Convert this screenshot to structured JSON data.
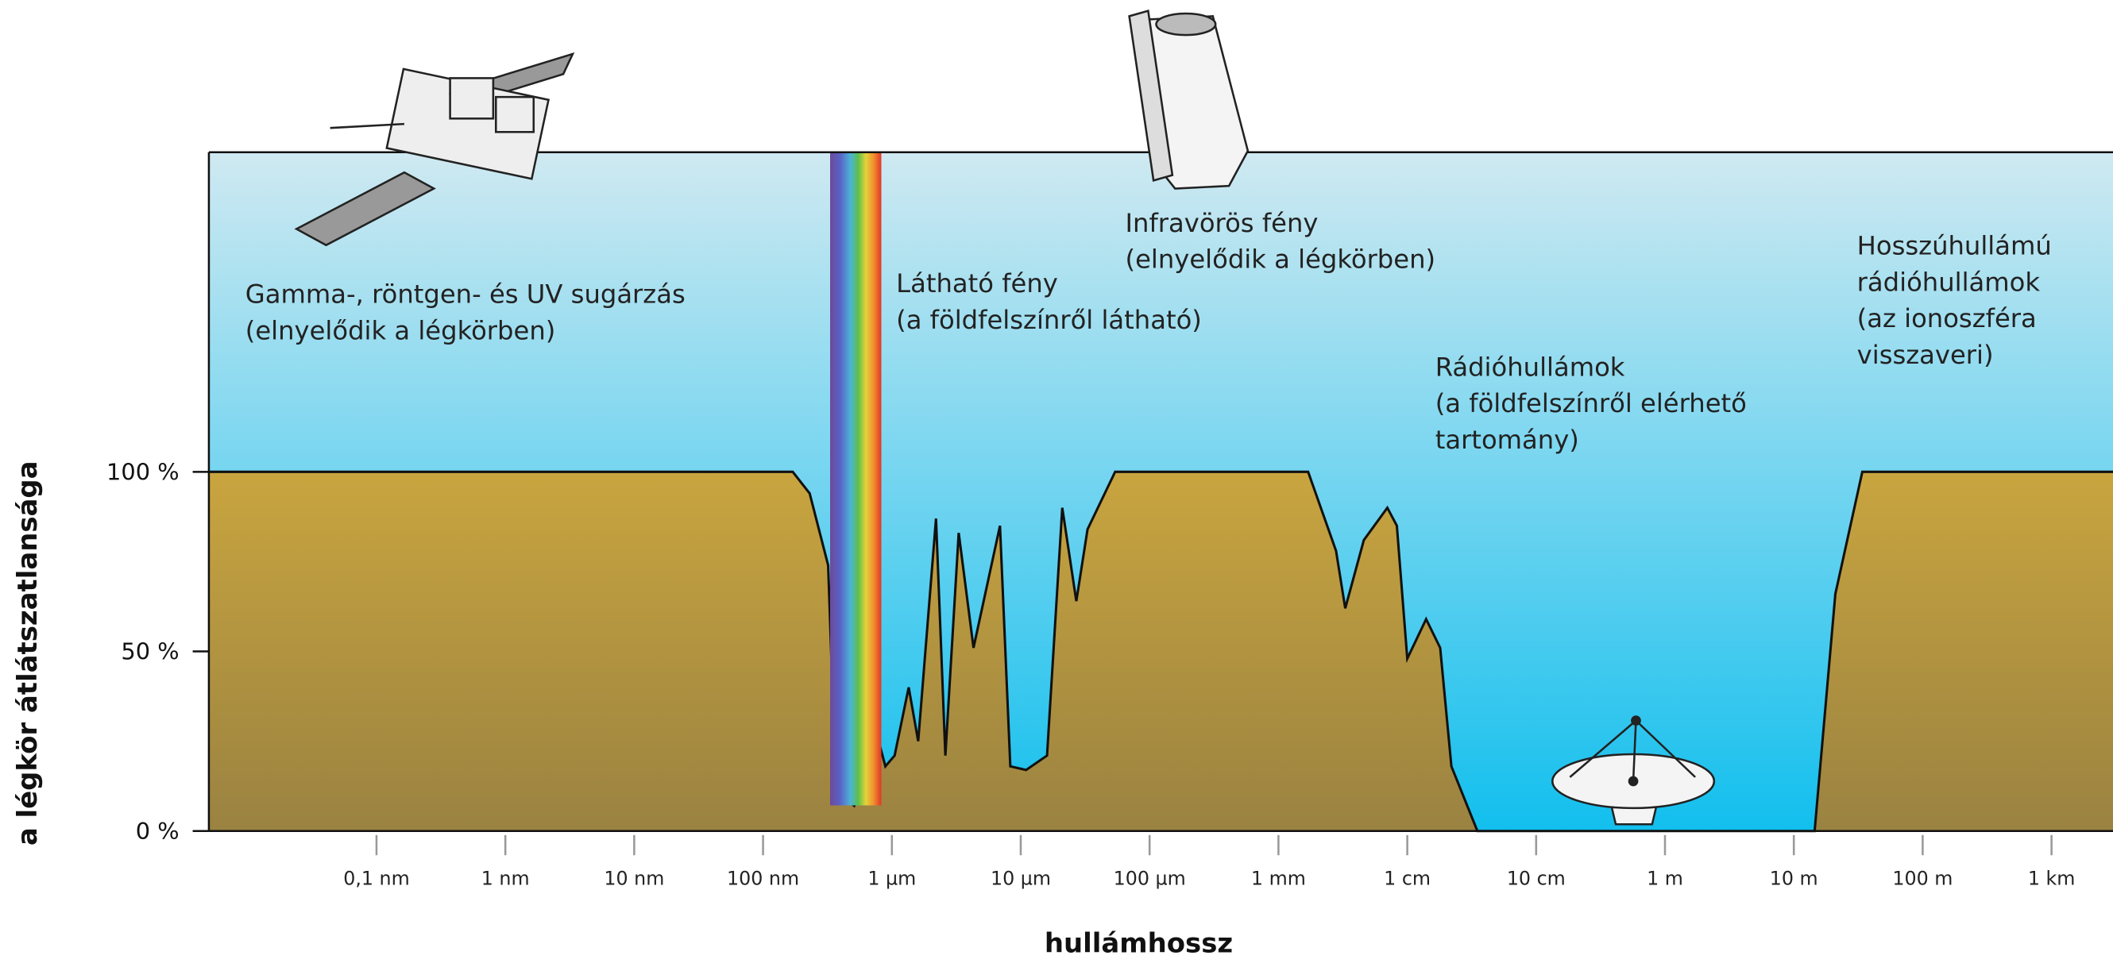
{
  "chart_data": {
    "type": "area",
    "x_label": "hullámhossz",
    "y_label": "a légkör átlátszatlansága",
    "x": [
      5e-12,
      1.7e-07,
      2.3e-07,
      3.2e-07,
      3.6e-07,
      4e-07,
      5.1e-07,
      6.5e-07,
      7.9e-07,
      8.9e-07,
      1.05e-06,
      1.35e-06,
      1.6e-06,
      2.2e-06,
      2.6e-06,
      3.3e-06,
      4.3e-06,
      6.9e-06,
      8.3e-06,
      1.1e-05,
      1.6e-05,
      2.1e-05,
      2.7e-05,
      3.3e-05,
      5.4e-05,
      0.0017,
      0.0028,
      0.0033,
      0.0046,
      0.007,
      0.0083,
      0.01,
      0.014,
      0.018,
      0.022,
      0.035,
      14.5,
      21,
      34,
      3000
    ],
    "values": [
      100,
      100,
      94,
      74,
      21,
      10,
      7,
      14,
      25,
      18,
      21,
      40,
      25,
      87,
      21,
      83,
      51,
      85,
      18,
      17,
      21,
      90,
      64,
      84,
      100,
      100,
      78,
      62,
      81,
      90,
      85,
      48,
      59,
      51,
      18,
      0,
      0,
      66,
      100,
      100
    ],
    "log_x": true,
    "xlim": [
      5e-12,
      3000
    ],
    "xticks": [
      {
        "value": 1e-10,
        "label": "0,1 nm"
      },
      {
        "value": 1e-09,
        "label": "1 nm"
      },
      {
        "value": 1e-08,
        "label": "10 nm"
      },
      {
        "value": 1e-07,
        "label": "100 nm"
      },
      {
        "value": 1e-06,
        "label": "1 µm"
      },
      {
        "value": 1e-05,
        "label": "10 µm"
      },
      {
        "value": 0.0001,
        "label": "100 µm"
      },
      {
        "value": 0.001,
        "label": "1 mm"
      },
      {
        "value": 0.01,
        "label": "1 cm"
      },
      {
        "value": 0.1,
        "label": "10 cm"
      },
      {
        "value": 1,
        "label": "1 m"
      },
      {
        "value": 10,
        "label": "10 m"
      },
      {
        "value": 100,
        "label": "100 m"
      },
      {
        "value": 1000,
        "label": "1 km"
      }
    ],
    "ylim": [
      0,
      189
    ],
    "yticks": [
      {
        "value": 0,
        "label": "0 %"
      },
      {
        "value": 50,
        "label": "50 %"
      },
      {
        "value": 100,
        "label": "100 %"
      }
    ],
    "annotations": [
      [
        "Gamma-, röntgen- és UV sugárzás",
        "(elnyelődik a légkörben)"
      ],
      [
        "Látható fény",
        "(a földfelszínről látható)"
      ],
      [
        "Infravörös fény",
        "(elnyelődik a légkörben)"
      ],
      [
        "Rádióhullámok",
        "(a földfelszínről elérhető",
        "tartomány)"
      ],
      [
        "Hosszúhullámú",
        "rádióhullámok",
        "(az ionoszféra",
        "visszaveri)"
      ]
    ]
  }
}
